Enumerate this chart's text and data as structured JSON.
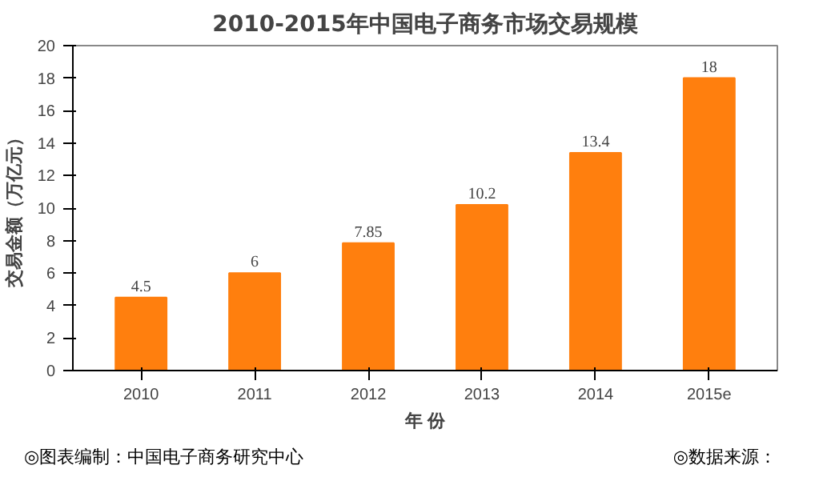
{
  "chart_data": {
    "type": "bar",
    "title": "2010-2015年中国电子商务市场交易规模",
    "xlabel": "年 份",
    "ylabel": "交易金额（万亿元）",
    "categories": [
      "2010",
      "2011",
      "2012",
      "2013",
      "2014",
      "2015e"
    ],
    "values": [
      4.5,
      6,
      7.85,
      10.2,
      13.4,
      18
    ],
    "color": "#ff7f0e",
    "ylim": [
      0,
      20
    ],
    "yticks": [
      0,
      2,
      4,
      6,
      8,
      10,
      12,
      14,
      16,
      18,
      20
    ],
    "grid": false,
    "data_labels": true,
    "annotations": [
      "◎图表编制：中国电子商务研究中心",
      "◎数据来源："
    ]
  }
}
